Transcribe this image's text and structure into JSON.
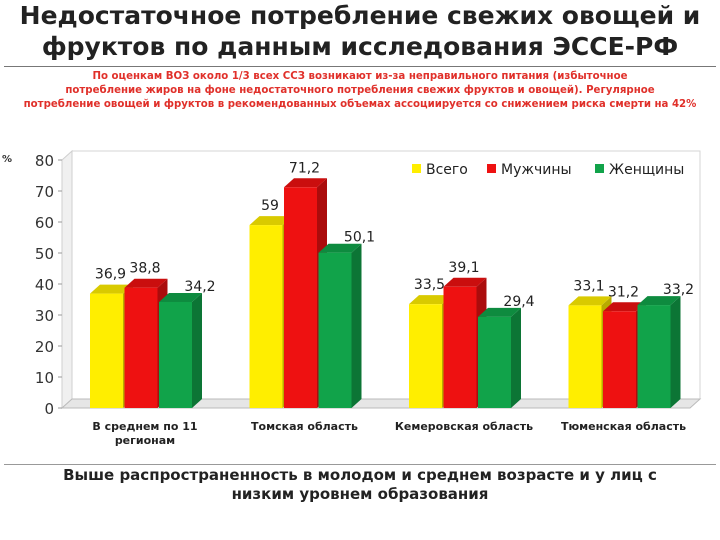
{
  "title": {
    "line1": "Недостаточное потребление свежих овощей и",
    "line2": "фруктов по данным  исследования ЭССЕ-РФ"
  },
  "note": {
    "line1": "По оценкам ВОЗ около 1/3 всех ССЗ возникают из-за неправильного питания  (избыточное",
    "line2": "потребление жиров на фоне недостаточного потребления  свежих фруктов  и овощей). Регулярное",
    "line3": "потребление овощей и фруктов  в рекомендованных объемах ассоциируется  со снижением риска смерти на 42%"
  },
  "footer": {
    "line1": "Выше распространенность в молодом и среднем возрасте и у лиц с",
    "line2": "низким уровнем образования"
  },
  "colors": {
    "all": "#ffee00",
    "men": "#ee1111",
    "women": "#11a34a",
    "note": "#e0302a"
  },
  "chart_data": {
    "type": "bar",
    "title": "",
    "xlabel": "",
    "ylabel": "%",
    "ylim": [
      0,
      80
    ],
    "yticks": [
      0,
      10,
      20,
      30,
      40,
      50,
      60,
      70,
      80
    ],
    "grid": false,
    "legend_position": "top-right",
    "categories": [
      [
        "В среднем по 11",
        "регионам"
      ],
      [
        "Томская область"
      ],
      [
        "Кемеровская область"
      ],
      [
        "Тюменская область"
      ]
    ],
    "series": [
      {
        "name": "Всего",
        "values": [
          36.9,
          59,
          33.5,
          33.1
        ],
        "labels": [
          "36,9",
          "59",
          "33,5",
          "33,1"
        ]
      },
      {
        "name": "Мужчины",
        "values": [
          38.8,
          71.2,
          39.1,
          31.2
        ],
        "labels": [
          "38,8",
          "71,2",
          "39,1",
          "31,2"
        ]
      },
      {
        "name": "Женщины",
        "values": [
          34.2,
          50.1,
          29.4,
          33.2
        ],
        "labels": [
          "34,2",
          "50,1",
          "29,4",
          "33,2"
        ]
      }
    ]
  }
}
